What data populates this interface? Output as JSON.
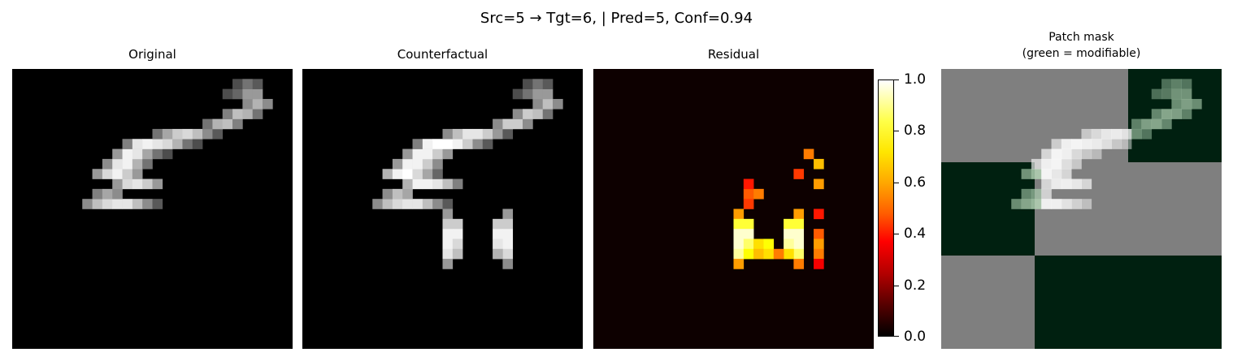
{
  "figure": {
    "suptitle": "Src=5 → Tgt=6, | Pred=5, Conf=0.94"
  },
  "panels": [
    {
      "title": "Original",
      "kind": "grayscale"
    },
    {
      "title": "Counterfactual",
      "kind": "grayscale"
    },
    {
      "title": "Residual",
      "kind": "hot"
    },
    {
      "title": "Patch mask",
      "subtitle": "(green = modifiable)",
      "kind": "mask"
    }
  ],
  "colorbar": {
    "cmap": "hot",
    "range": [
      0.0,
      1.0
    ],
    "ticks": [
      "0.0",
      "0.2",
      "0.4",
      "0.6",
      "0.8",
      "1.0"
    ]
  },
  "chart_data": {
    "type": "heatmap",
    "grid": [
      28,
      28
    ],
    "colors": {
      "mask_modifiable": "#002010",
      "mask_fixed": "#7f7f7f"
    },
    "original": [
      [
        13,
        7,
        0.55
      ],
      [
        13,
        8,
        0.75
      ],
      [
        13,
        9,
        0.85
      ],
      [
        13,
        10,
        0.9
      ],
      [
        13,
        11,
        0.9
      ],
      [
        13,
        12,
        0.75
      ],
      [
        13,
        13,
        0.55
      ],
      [
        13,
        14,
        0.35
      ],
      [
        12,
        8,
        0.5
      ],
      [
        12,
        9,
        0.65
      ],
      [
        12,
        10,
        0.55
      ],
      [
        11,
        10,
        0.6
      ],
      [
        11,
        11,
        0.85
      ],
      [
        11,
        12,
        0.9
      ],
      [
        11,
        13,
        0.8
      ],
      [
        11,
        14,
        0.6
      ],
      [
        10,
        8,
        0.6
      ],
      [
        10,
        9,
        0.85
      ],
      [
        10,
        10,
        0.95
      ],
      [
        10,
        11,
        0.8
      ],
      [
        10,
        12,
        0.6
      ],
      [
        9,
        9,
        0.55
      ],
      [
        9,
        10,
        0.9
      ],
      [
        9,
        11,
        0.95
      ],
      [
        9,
        12,
        0.7
      ],
      [
        9,
        13,
        0.45
      ],
      [
        8,
        10,
        0.6
      ],
      [
        8,
        11,
        0.95
      ],
      [
        8,
        12,
        0.9
      ],
      [
        8,
        13,
        0.65
      ],
      [
        8,
        14,
        0.45
      ],
      [
        8,
        15,
        0.3
      ],
      [
        7,
        11,
        0.5
      ],
      [
        7,
        12,
        0.9
      ],
      [
        7,
        13,
        0.95
      ],
      [
        7,
        14,
        0.9
      ],
      [
        7,
        15,
        0.85
      ],
      [
        7,
        16,
        0.7
      ],
      [
        7,
        17,
        0.45
      ],
      [
        7,
        18,
        0.3
      ],
      [
        6,
        14,
        0.45
      ],
      [
        6,
        15,
        0.65
      ],
      [
        6,
        16,
        0.8
      ],
      [
        6,
        17,
        0.85
      ],
      [
        6,
        18,
        0.75
      ],
      [
        6,
        19,
        0.55
      ],
      [
        6,
        20,
        0.35
      ],
      [
        5,
        19,
        0.45
      ],
      [
        5,
        20,
        0.7
      ],
      [
        5,
        21,
        0.75
      ],
      [
        5,
        22,
        0.5
      ],
      [
        4,
        21,
        0.5
      ],
      [
        4,
        22,
        0.75
      ],
      [
        4,
        23,
        0.7
      ],
      [
        4,
        24,
        0.45
      ],
      [
        3,
        23,
        0.55
      ],
      [
        3,
        24,
        0.7
      ],
      [
        3,
        25,
        0.55
      ],
      [
        2,
        21,
        0.3
      ],
      [
        2,
        22,
        0.4
      ],
      [
        2,
        23,
        0.6
      ],
      [
        2,
        24,
        0.6
      ],
      [
        1,
        22,
        0.3
      ],
      [
        1,
        23,
        0.45
      ],
      [
        1,
        24,
        0.35
      ]
    ],
    "counterfactual": [
      [
        13,
        7,
        0.55
      ],
      [
        13,
        8,
        0.75
      ],
      [
        13,
        9,
        0.85
      ],
      [
        13,
        10,
        0.9
      ],
      [
        13,
        11,
        0.9
      ],
      [
        13,
        12,
        0.75
      ],
      [
        13,
        13,
        0.55
      ],
      [
        13,
        14,
        0.35
      ],
      [
        12,
        8,
        0.55
      ],
      [
        12,
        9,
        0.75
      ],
      [
        12,
        10,
        0.65
      ],
      [
        11,
        10,
        0.7
      ],
      [
        11,
        11,
        0.95
      ],
      [
        11,
        12,
        0.95
      ],
      [
        11,
        13,
        0.9
      ],
      [
        11,
        14,
        0.75
      ],
      [
        11,
        15,
        0.5
      ],
      [
        10,
        8,
        0.7
      ],
      [
        10,
        9,
        0.95
      ],
      [
        10,
        10,
        1.0
      ],
      [
        10,
        11,
        0.85
      ],
      [
        10,
        12,
        0.65
      ],
      [
        10,
        13,
        0.4
      ],
      [
        9,
        9,
        0.6
      ],
      [
        9,
        10,
        0.95
      ],
      [
        9,
        11,
        0.95
      ],
      [
        9,
        12,
        0.8
      ],
      [
        9,
        13,
        0.55
      ],
      [
        8,
        10,
        0.6
      ],
      [
        8,
        11,
        0.95
      ],
      [
        8,
        12,
        0.95
      ],
      [
        8,
        13,
        0.8
      ],
      [
        8,
        14,
        0.6
      ],
      [
        7,
        11,
        0.5
      ],
      [
        7,
        12,
        0.95
      ],
      [
        7,
        13,
        1.0
      ],
      [
        7,
        14,
        1.0
      ],
      [
        7,
        15,
        0.95
      ],
      [
        7,
        16,
        0.8
      ],
      [
        7,
        17,
        0.55
      ],
      [
        7,
        18,
        0.35
      ],
      [
        6,
        14,
        0.55
      ],
      [
        6,
        15,
        0.75
      ],
      [
        6,
        16,
        0.9
      ],
      [
        6,
        17,
        0.9
      ],
      [
        6,
        18,
        0.8
      ],
      [
        6,
        19,
        0.6
      ],
      [
        6,
        20,
        0.35
      ],
      [
        5,
        19,
        0.55
      ],
      [
        5,
        20,
        0.8
      ],
      [
        5,
        21,
        0.8
      ],
      [
        5,
        22,
        0.55
      ],
      [
        4,
        21,
        0.55
      ],
      [
        4,
        22,
        0.8
      ],
      [
        4,
        23,
        0.75
      ],
      [
        4,
        24,
        0.45
      ],
      [
        3,
        23,
        0.55
      ],
      [
        3,
        24,
        0.75
      ],
      [
        3,
        25,
        0.55
      ],
      [
        2,
        21,
        0.3
      ],
      [
        2,
        22,
        0.45
      ],
      [
        2,
        23,
        0.6
      ],
      [
        2,
        24,
        0.6
      ],
      [
        1,
        22,
        0.3
      ],
      [
        1,
        23,
        0.45
      ],
      [
        1,
        24,
        0.35
      ],
      [
        14,
        14,
        0.6
      ],
      [
        15,
        14,
        0.8
      ],
      [
        16,
        14,
        0.95
      ],
      [
        17,
        14,
        0.95
      ],
      [
        18,
        14,
        0.9
      ],
      [
        19,
        14,
        0.6
      ],
      [
        14,
        20,
        0.6
      ],
      [
        15,
        20,
        0.8
      ],
      [
        16,
        20,
        0.95
      ],
      [
        17,
        20,
        0.95
      ],
      [
        18,
        20,
        0.85
      ],
      [
        19,
        20,
        0.55
      ],
      [
        15,
        15,
        0.8
      ],
      [
        16,
        15,
        0.95
      ],
      [
        17,
        15,
        0.85
      ],
      [
        18,
        15,
        0.75
      ],
      [
        15,
        19,
        0.8
      ],
      [
        16,
        19,
        0.95
      ],
      [
        17,
        19,
        0.9
      ],
      [
        18,
        19,
        0.7
      ]
    ],
    "residual": [
      [
        14,
        14,
        0.6
      ],
      [
        15,
        14,
        0.8
      ],
      [
        16,
        14,
        0.95
      ],
      [
        17,
        14,
        0.95
      ],
      [
        18,
        14,
        0.9
      ],
      [
        19,
        14,
        0.6
      ],
      [
        14,
        20,
        0.6
      ],
      [
        15,
        20,
        0.8
      ],
      [
        16,
        20,
        0.95
      ],
      [
        17,
        20,
        0.95
      ],
      [
        18,
        20,
        0.85
      ],
      [
        19,
        20,
        0.55
      ],
      [
        15,
        15,
        0.8
      ],
      [
        16,
        15,
        0.95
      ],
      [
        17,
        15,
        0.85
      ],
      [
        18,
        15,
        0.75
      ],
      [
        15,
        19,
        0.8
      ],
      [
        16,
        19,
        0.95
      ],
      [
        17,
        19,
        0.9
      ],
      [
        18,
        19,
        0.7
      ],
      [
        17,
        16,
        0.7
      ],
      [
        17,
        17,
        0.75
      ],
      [
        18,
        16,
        0.65
      ],
      [
        18,
        17,
        0.7
      ],
      [
        18,
        18,
        0.55
      ],
      [
        8,
        21,
        0.55
      ],
      [
        9,
        22,
        0.65
      ],
      [
        10,
        20,
        0.45
      ],
      [
        11,
        22,
        0.6
      ],
      [
        12,
        15,
        0.5
      ],
      [
        12,
        16,
        0.55
      ],
      [
        13,
        15,
        0.45
      ],
      [
        11,
        15,
        0.4
      ],
      [
        14,
        22,
        0.4
      ],
      [
        16,
        22,
        0.5
      ],
      [
        17,
        22,
        0.6
      ],
      [
        18,
        22,
        0.55
      ],
      [
        19,
        22,
        0.35
      ]
    ],
    "mask": [
      [
        0,
        0,
        0
      ],
      [
        0,
        1,
        0
      ],
      [
        0,
        2,
        1
      ],
      [
        1,
        0,
        1
      ],
      [
        1,
        1,
        0
      ],
      [
        1,
        2,
        0
      ],
      [
        2,
        0,
        0
      ],
      [
        2,
        1,
        1
      ],
      [
        2,
        2,
        1
      ]
    ]
  }
}
